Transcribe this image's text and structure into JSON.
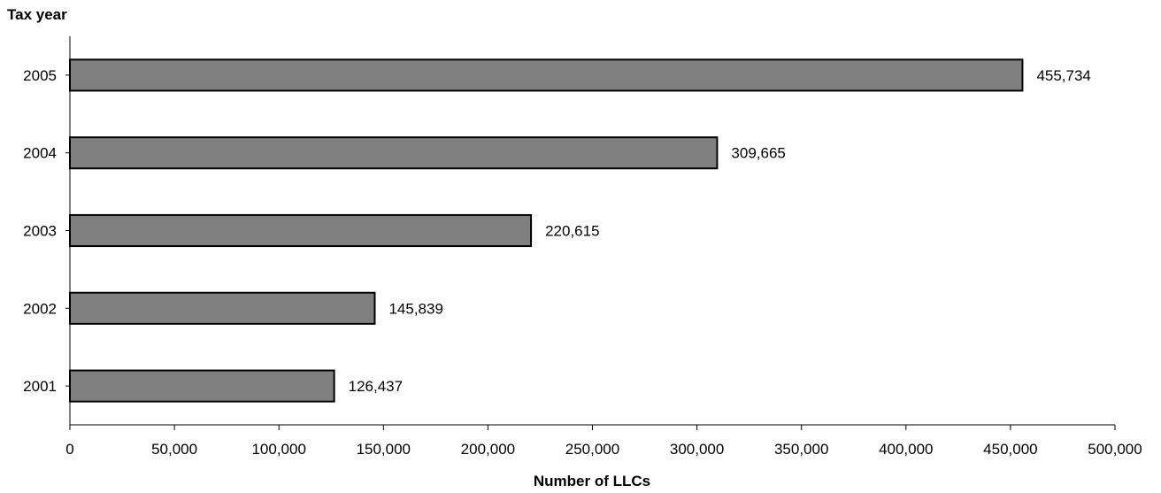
{
  "chart_data": {
    "type": "bar",
    "orientation": "horizontal",
    "categories": [
      "2005",
      "2004",
      "2003",
      "2002",
      "2001"
    ],
    "values": [
      455734,
      309665,
      220615,
      145839,
      126437
    ],
    "data_labels": [
      "455,734",
      "309,665",
      "220,615",
      "145,839",
      "126,437"
    ],
    "title": "",
    "xlabel": "Number of LLCs",
    "ylabel": "Tax year",
    "xlim": [
      0,
      500000
    ],
    "xticks": [
      0,
      50000,
      100000,
      150000,
      200000,
      250000,
      300000,
      350000,
      400000,
      450000,
      500000
    ],
    "xtick_labels": [
      "0",
      "50,000",
      "100,000",
      "150,000",
      "200,000",
      "250,000",
      "300,000",
      "350,000",
      "400,000",
      "450,000",
      "500,000"
    ],
    "grid": false,
    "legend": "none",
    "bar_color": "#808080",
    "bar_edge_color": "#000000"
  }
}
